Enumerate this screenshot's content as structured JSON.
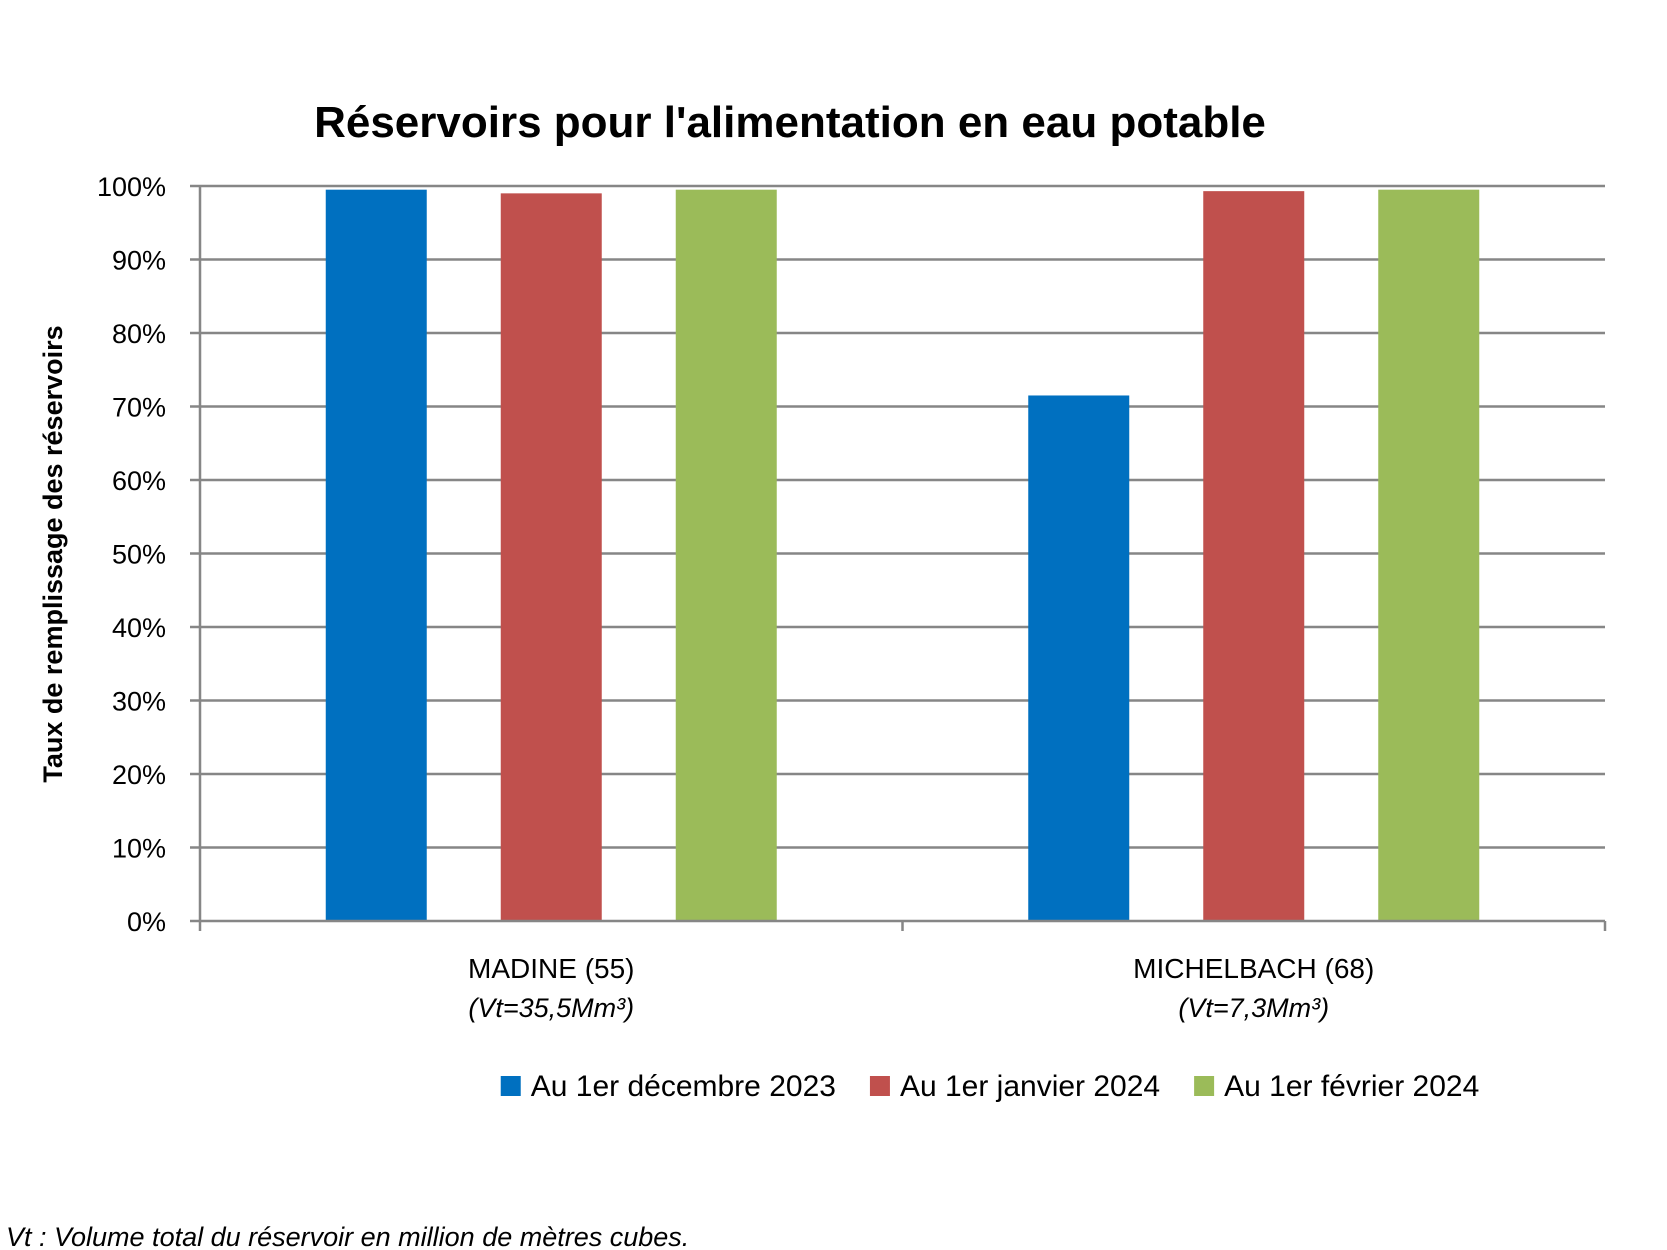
{
  "chart_data": {
    "type": "bar",
    "title": "Réservoirs pour l'alimentation en eau potable",
    "ylabel": "Taux de remplissage des réservoirs",
    "xlabel": "",
    "ylim": [
      0,
      100
    ],
    "yticks": [
      "0%",
      "10%",
      "20%",
      "30%",
      "40%",
      "50%",
      "60%",
      "70%",
      "80%",
      "90%",
      "100%"
    ],
    "categories": [
      {
        "label": "MADINE (55)",
        "sublabel": "(Vt=35,5Mm³)"
      },
      {
        "label": "MICHELBACH (68)",
        "sublabel": "(Vt=7,3Mm³)"
      }
    ],
    "series": [
      {
        "name": "Au 1er décembre 2023",
        "color": "#0070C0",
        "values": [
          99.5,
          71.5
        ]
      },
      {
        "name": "Au 1er janvier 2024",
        "color": "#C0504D",
        "values": [
          99.0,
          99.3
        ]
      },
      {
        "name": "Au 1er février 2024",
        "color": "#9BBB59",
        "values": [
          99.5,
          99.5
        ]
      }
    ],
    "grid": true,
    "legend_position": "bottom",
    "gridline_color": "#868686"
  },
  "footnote": "Vt : Volume total du réservoir en million de mètres cubes."
}
